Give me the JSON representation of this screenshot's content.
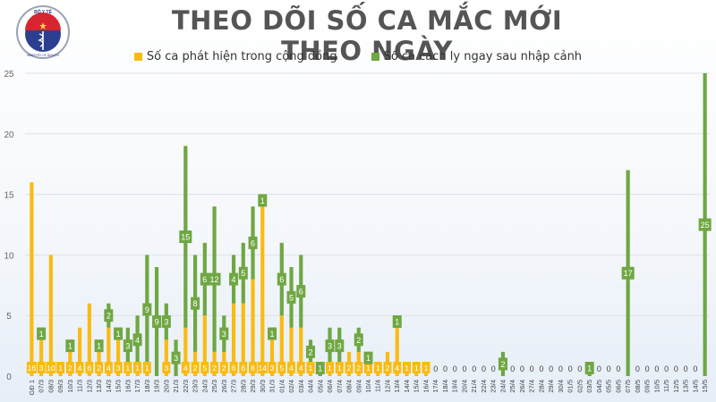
{
  "header": {
    "title": "THEO DÕI SỐ CA MẮC MỚI THEO NGÀY",
    "logo": {
      "icon": "ministry-of-health-logo-icon",
      "top_text": "BỘ Y TẾ",
      "bottom_text": "MINISTRY OF HEALTH"
    }
  },
  "legend": [
    {
      "label": "Số ca phát hiện trong cộng đồng",
      "color": "#f9bb13"
    },
    {
      "label": "Số ca cách ly ngay sau nhập cảnh",
      "color": "#6fa742"
    }
  ],
  "chart_data": {
    "type": "bar",
    "stacked": true,
    "title": "THEO DÕI SỐ CA MẮC MỚI THEO NGÀY",
    "xlabel": "",
    "ylabel": "",
    "ylim": [
      0,
      25
    ],
    "yticks": [
      0,
      5,
      10,
      15,
      20,
      25
    ],
    "grid": true,
    "legend_position": "top",
    "categories": [
      "GĐ 1",
      "07/3",
      "08/3",
      "09/3",
      "10/3",
      "11/3",
      "12/3",
      "13/3",
      "14/3",
      "15/3",
      "16/3",
      "17/3",
      "18/3",
      "19/3",
      "20/3",
      "21/3",
      "22/3",
      "23/3",
      "24/3",
      "25/3",
      "26/3",
      "27/3",
      "28/3",
      "29/3",
      "30/3",
      "31/3",
      "01/4",
      "02/4",
      "03/4",
      "04/4",
      "05/4",
      "06/4",
      "07/4",
      "08/4",
      "09/4",
      "10/4",
      "11/4",
      "12/4",
      "13/4",
      "14/4",
      "15/4",
      "16/4",
      "17/4",
      "18/4",
      "19/4",
      "20/4",
      "21/4",
      "22/4",
      "23/4",
      "24/4",
      "25/4",
      "26/4",
      "27/4",
      "28/4",
      "29/4",
      "30/4",
      "01/5",
      "02/5",
      "03/5",
      "04/5",
      "05/5",
      "06/5",
      "07/5",
      "08/5",
      "09/5",
      "10/5",
      "11/5",
      "12/5",
      "13/5",
      "14/5",
      "15/5"
    ],
    "series": [
      {
        "name": "Số ca phát hiện trong cộng đồng",
        "color": "#f9bb13",
        "values": [
          16,
          3,
          10,
          1,
          2,
          4,
          6,
          2,
          4,
          3,
          1,
          1,
          1,
          0,
          3,
          0,
          4,
          2,
          5,
          2,
          2,
          6,
          6,
          8,
          14,
          3,
          5,
          4,
          4,
          1,
          0,
          1,
          1,
          2,
          2,
          1,
          1,
          2,
          4,
          1,
          1,
          1,
          0,
          0,
          0,
          0,
          0,
          0,
          0,
          0,
          0,
          0,
          0,
          0,
          0,
          0,
          0,
          0,
          0,
          0,
          0,
          0,
          0,
          0,
          0,
          0,
          0,
          0,
          0,
          0,
          0
        ]
      },
      {
        "name": "Số ca cách ly ngay sau nhập cảnh",
        "color": "#6fa742",
        "values": [
          0,
          1,
          0,
          0,
          1,
          0,
          0,
          1,
          2,
          1,
          3,
          4,
          9,
          9,
          3,
          3,
          15,
          8,
          6,
          12,
          3,
          4,
          5,
          6,
          1,
          1,
          6,
          5,
          6,
          2,
          1,
          3,
          3,
          0,
          2,
          1,
          0,
          0,
          1,
          0,
          0,
          0,
          0,
          0,
          0,
          0,
          0,
          0,
          0,
          2,
          0,
          0,
          0,
          0,
          0,
          0,
          0,
          0,
          1,
          0,
          0,
          0,
          17,
          0,
          0,
          0,
          0,
          0,
          0,
          0,
          25
        ]
      }
    ],
    "zero_label": "0"
  }
}
